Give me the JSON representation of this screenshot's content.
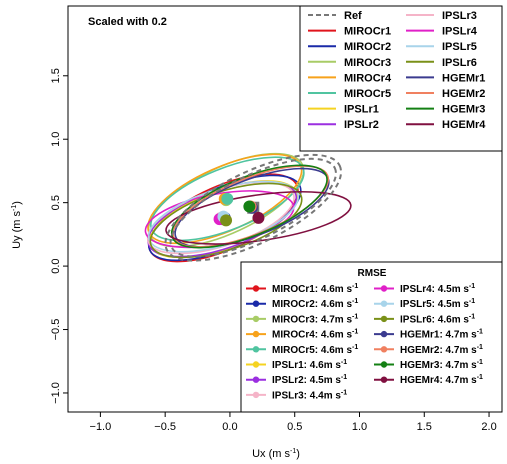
{
  "chart_data": {
    "type": "scatter",
    "title": "",
    "annotation": "Scaled with 0.2",
    "xlabel": "Ux (m s",
    "ylabel": "Uy (m s",
    "label_exponent": "-1",
    "label_close": ")",
    "xlim": [
      -1.25,
      2.1
    ],
    "ylim": [
      -1.15,
      2.05
    ],
    "xticks": [
      {
        "v": -1.0,
        "label": "−1.0"
      },
      {
        "v": -0.5,
        "label": "−0.5"
      },
      {
        "v": 0.0,
        "label": "0.0"
      },
      {
        "v": 0.5,
        "label": "0.5"
      },
      {
        "v": 1.0,
        "label": "1.0"
      },
      {
        "v": 1.5,
        "label": "1.5"
      },
      {
        "v": 2.0,
        "label": "2.0"
      }
    ],
    "yticks": [
      {
        "v": -1.0,
        "label": "−1.0"
      },
      {
        "v": -0.5,
        "label": "−0.5"
      },
      {
        "v": 0.0,
        "label": "0.0"
      },
      {
        "v": 0.5,
        "label": "0.5"
      },
      {
        "v": 1.0,
        "label": "1.0"
      },
      {
        "v": 1.5,
        "label": "1.5"
      }
    ],
    "legend_position": "top-right",
    "rmse_title": "RMSE",
    "rmse_legend_position": "bottom-right",
    "reference": {
      "name": "Ref",
      "color": "#777777",
      "mean": [
        0.18,
        0.46
      ],
      "ellipse": {
        "rx": 0.7,
        "ry": 0.25,
        "angle_deg": -26
      }
    },
    "series": [
      {
        "name": "MIROCr1",
        "color": "#e0141c",
        "rmse": "MIROCr1: 4.6m s",
        "mean": [
          -0.05,
          0.38
        ],
        "ellipse": {
          "rx": 0.62,
          "ry": 0.25,
          "angle_deg": -24
        }
      },
      {
        "name": "MIROCr2",
        "color": "#1a2aa8",
        "rmse": "MIROCr2: 4.6m s",
        "mean": [
          -0.04,
          0.38
        ],
        "ellipse": {
          "rx": 0.63,
          "ry": 0.24,
          "angle_deg": -23
        }
      },
      {
        "name": "MIROCr3",
        "color": "#a8cc66",
        "rmse": "MIROCr3: 4.7m s",
        "mean": [
          -0.03,
          0.52
        ],
        "ellipse": {
          "rx": 0.65,
          "ry": 0.26,
          "angle_deg": -25
        }
      },
      {
        "name": "MIROCr4",
        "color": "#f7a21b",
        "rmse": "MIROCr4: 4.6m s",
        "mean": [
          -0.04,
          0.53
        ],
        "ellipse": {
          "rx": 0.64,
          "ry": 0.25,
          "angle_deg": -24
        }
      },
      {
        "name": "MIROCr5",
        "color": "#50c4a0",
        "rmse": "MIROCr5: 4.6m s",
        "mean": [
          -0.02,
          0.53
        ],
        "ellipse": {
          "rx": 0.63,
          "ry": 0.24,
          "angle_deg": -22
        }
      },
      {
        "name": "IPSLr1",
        "color": "#f5d321",
        "rmse": "IPSLr1: 4.6m s",
        "mean": [
          -0.05,
          0.37
        ],
        "ellipse": {
          "rx": 0.6,
          "ry": 0.23,
          "angle_deg": -20
        }
      },
      {
        "name": "IPSLr2",
        "color": "#9b2fe0",
        "rmse": "IPSLr2: 4.5m s",
        "mean": [
          -0.06,
          0.37
        ],
        "ellipse": {
          "rx": 0.6,
          "ry": 0.23,
          "angle_deg": -19
        }
      },
      {
        "name": "IPSLr3",
        "color": "#f5b4c8",
        "rmse": "IPSLr3: 4.4m s",
        "mean": [
          -0.07,
          0.38
        ],
        "ellipse": {
          "rx": 0.59,
          "ry": 0.22,
          "angle_deg": -18
        }
      },
      {
        "name": "IPSLr4",
        "color": "#e020c8",
        "rmse": "IPSLr4: 4.5m s",
        "mean": [
          -0.08,
          0.37
        ],
        "ellipse": {
          "rx": 0.58,
          "ry": 0.2,
          "angle_deg": -10
        }
      },
      {
        "name": "IPSLr5",
        "color": "#a8d4ea",
        "rmse": "IPSLr5: 4.5m s",
        "mean": [
          -0.05,
          0.39
        ],
        "ellipse": {
          "rx": 0.6,
          "ry": 0.22,
          "angle_deg": -17
        }
      },
      {
        "name": "IPSLr6",
        "color": "#7a9018",
        "rmse": "IPSLr6: 4.6m s",
        "mean": [
          -0.03,
          0.36
        ],
        "ellipse": {
          "rx": 0.61,
          "ry": 0.23,
          "angle_deg": -18
        }
      },
      {
        "name": "HGEMr1",
        "color": "#3b3b8f",
        "rmse": "HGEMr1: 4.7m s",
        "mean": [
          0.17,
          0.46
        ],
        "ellipse": {
          "rx": 0.63,
          "ry": 0.22,
          "angle_deg": -21
        }
      },
      {
        "name": "HGEMr2",
        "color": "#f08060",
        "rmse": "HGEMr2: 4.7m s",
        "mean": [
          0.16,
          0.47
        ],
        "ellipse": {
          "rx": 0.64,
          "ry": 0.22,
          "angle_deg": -22
        }
      },
      {
        "name": "HGEMr3",
        "color": "#148014",
        "rmse": "HGEMr3: 4.7m s",
        "mean": [
          0.15,
          0.47
        ],
        "ellipse": {
          "rx": 0.64,
          "ry": 0.23,
          "angle_deg": -22
        }
      },
      {
        "name": "HGEMr4",
        "color": "#801040",
        "rmse": "HGEMr4: 4.7m s",
        "mean": [
          0.22,
          0.38
        ],
        "ellipse": {
          "rx": 0.72,
          "ry": 0.18,
          "angle_deg": -8
        }
      }
    ]
  }
}
